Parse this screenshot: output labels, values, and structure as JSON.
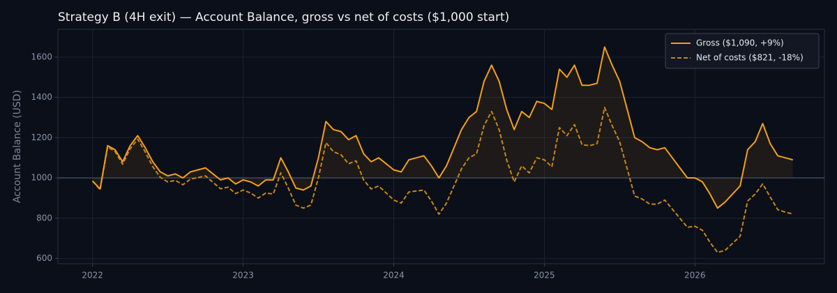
{
  "chart_data": {
    "type": "line",
    "title": "Strategy B (4H exit) — Account Balance, gross vs net of costs ($1,000 start)",
    "ylabel": "Account Balance (USD)",
    "x": [
      2022.0,
      2022.05,
      2022.1,
      2022.15,
      2022.2,
      2022.25,
      2022.3,
      2022.35,
      2022.4,
      2022.45,
      2022.5,
      2022.55,
      2022.6,
      2022.65,
      2022.7,
      2022.75,
      2022.8,
      2022.85,
      2022.9,
      2022.95,
      2023.0,
      2023.05,
      2023.1,
      2023.15,
      2023.2,
      2023.25,
      2023.3,
      2023.35,
      2023.4,
      2023.45,
      2023.5,
      2023.55,
      2023.6,
      2023.65,
      2023.7,
      2023.75,
      2023.8,
      2023.85,
      2023.9,
      2023.95,
      2024.0,
      2024.05,
      2024.1,
      2024.15,
      2024.2,
      2024.25,
      2024.3,
      2024.35,
      2024.4,
      2024.45,
      2024.5,
      2024.55,
      2024.6,
      2024.65,
      2024.7,
      2024.75,
      2024.8,
      2024.85,
      2024.9,
      2024.95,
      2025.0,
      2025.05,
      2025.1,
      2025.15,
      2025.2,
      2025.25,
      2025.3,
      2025.35,
      2025.4,
      2025.45,
      2025.5,
      2025.55,
      2025.6,
      2025.65,
      2025.7,
      2025.75,
      2025.8,
      2025.85,
      2025.9,
      2025.95,
      2026.0,
      2026.05,
      2026.1,
      2026.15,
      2026.2,
      2026.25,
      2026.3,
      2026.35,
      2026.4,
      2026.45,
      2026.5,
      2026.55,
      2026.6,
      2026.65
    ],
    "series": [
      {
        "name": "Gross ($1,090, +9%)",
        "color": "#f5a01a",
        "linestyle": "solid",
        "fill": true,
        "values": [
          985,
          945,
          1160,
          1140,
          1080,
          1160,
          1210,
          1150,
          1080,
          1030,
          1010,
          1020,
          1000,
          1030,
          1040,
          1050,
          1020,
          990,
          1000,
          970,
          990,
          980,
          960,
          990,
          990,
          1100,
          1030,
          950,
          940,
          960,
          1100,
          1280,
          1240,
          1230,
          1190,
          1210,
          1120,
          1080,
          1100,
          1070,
          1040,
          1030,
          1090,
          1100,
          1110,
          1060,
          1000,
          1060,
          1150,
          1240,
          1300,
          1330,
          1480,
          1560,
          1480,
          1340,
          1240,
          1330,
          1300,
          1380,
          1370,
          1340,
          1540,
          1500,
          1560,
          1460,
          1460,
          1470,
          1650,
          1560,
          1480,
          1340,
          1200,
          1180,
          1150,
          1140,
          1150,
          1100,
          1050,
          1000,
          1000,
          980,
          920,
          850,
          880,
          920,
          960,
          1140,
          1180,
          1270,
          1170,
          1110,
          1100,
          1090
        ]
      },
      {
        "name": "Net of costs ($821, -18%)",
        "color": "#c8861a",
        "linestyle": "dashed",
        "fill": false,
        "values": [
          985,
          942,
          1154,
          1131,
          1068,
          1145,
          1192,
          1129,
          1056,
          1003,
          980,
          988,
          966,
          994,
          1002,
          1010,
          978,
          946,
          954,
          922,
          940,
          925,
          900,
          925,
          920,
          1025,
          950,
          865,
          850,
          865,
          1000,
          1175,
          1130,
          1115,
          1070,
          1085,
          990,
          945,
          960,
          925,
          890,
          875,
          930,
          935,
          940,
          885,
          820,
          875,
          960,
          1045,
          1100,
          1120,
          1260,
          1330,
          1240,
          1090,
          980,
          1060,
          1025,
          1100,
          1090,
          1055,
          1250,
          1210,
          1265,
          1165,
          1160,
          1170,
          1350,
          1260,
          1180,
          1045,
          910,
          895,
          870,
          870,
          890,
          845,
          800,
          755,
          760,
          740,
          680,
          630,
          640,
          675,
          710,
          885,
          920,
          970,
          905,
          842,
          830,
          821
        ]
      }
    ],
    "baseline": 1000,
    "xlim": [
      2021.77,
      2026.86
    ],
    "xticks": [
      2022,
      2023,
      2024,
      2025,
      2026
    ],
    "ylim": [
      574,
      1738
    ],
    "yticks": [
      600,
      800,
      1000,
      1200,
      1400,
      1600
    ],
    "grid": true,
    "legend": "upper right"
  }
}
